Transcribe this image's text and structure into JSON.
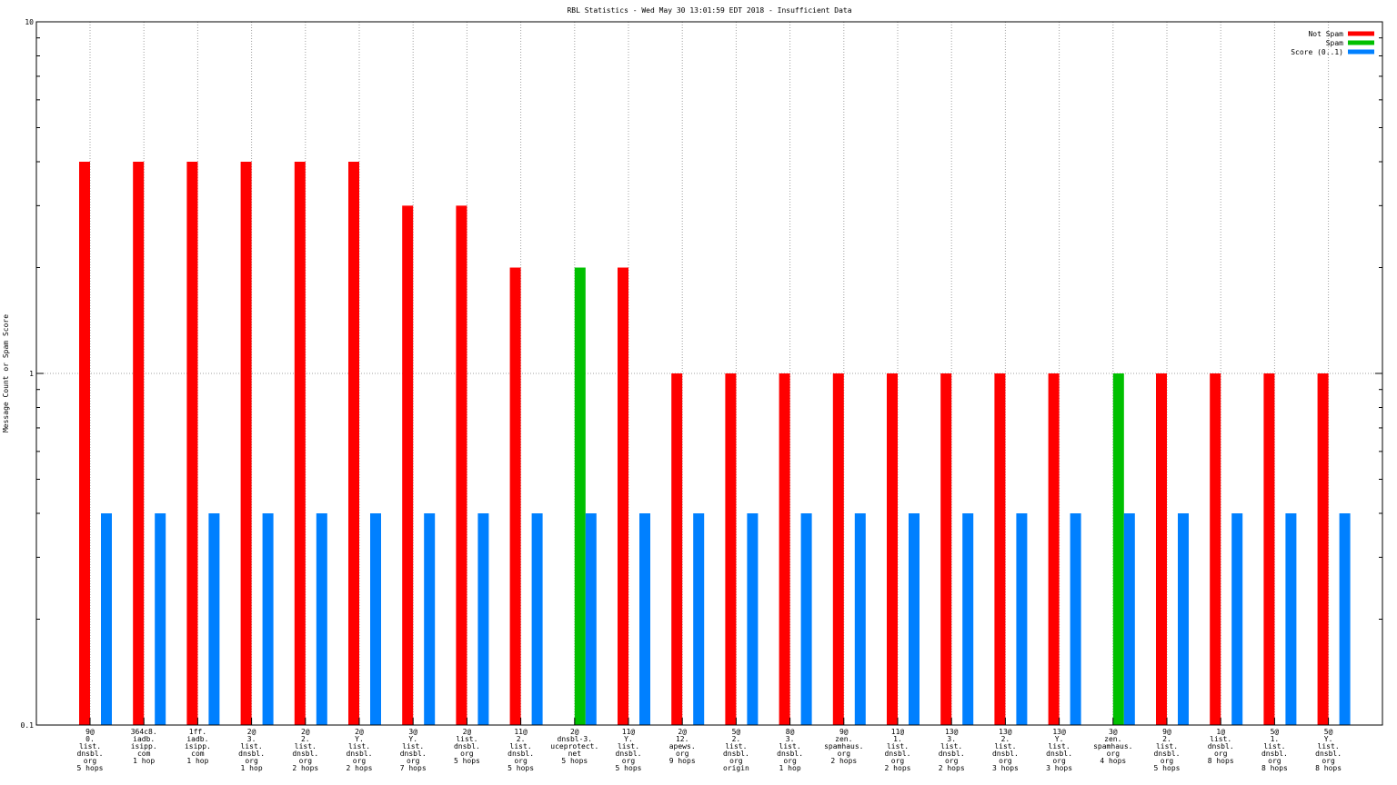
{
  "chart_data": {
    "type": "bar",
    "title": "RBL Statistics - Wed May 30 13:01:59 EDT 2018 - Insufficient Data",
    "y_label": "Message Count or Spam Score",
    "log_scale_y": true,
    "ylim": [
      0.1,
      10
    ],
    "yticks": [
      0.1,
      1,
      10
    ],
    "grid": true,
    "legend": "top-right",
    "categories": [
      [
        "9@",
        "0.",
        "list.",
        "dnsbl.",
        "org",
        "5 hops"
      ],
      [
        "364c8.",
        "iadb.",
        "isipp.",
        "com",
        "1 hop"
      ],
      [
        "1ff.",
        "iadb.",
        "isipp.",
        "com",
        "1 hop"
      ],
      [
        "2@",
        "3.",
        "list.",
        "dnsbl.",
        "org",
        "1 hop"
      ],
      [
        "2@",
        "2.",
        "list.",
        "dnsbl.",
        "org",
        "2 hops"
      ],
      [
        "2@",
        "Y.",
        "list.",
        "dnsbl.",
        "org",
        "2 hops"
      ],
      [
        "3@",
        "Y.",
        "list.",
        "dnsbl.",
        "org",
        "7 hops"
      ],
      [
        "2@",
        "list.",
        "dnsbl.",
        "org",
        "5 hops"
      ],
      [
        "11@",
        "2.",
        "list.",
        "dnsbl.",
        "org",
        "5 hops"
      ],
      [
        "2@",
        "dnsbl-3.",
        "uceprotect.",
        "net",
        "5 hops"
      ],
      [
        "11@",
        "Y.",
        "list.",
        "dnsbl.",
        "org",
        "5 hops"
      ],
      [
        "2@",
        "12.",
        "apews.",
        "org",
        "9 hops"
      ],
      [
        "5@",
        "2.",
        "list.",
        "dnsbl.",
        "org",
        "origin"
      ],
      [
        "8@",
        "3.",
        "list.",
        "dnsbl.",
        "org",
        "1 hop"
      ],
      [
        "9@",
        "zen.",
        "spamhaus.",
        "org",
        "2 hops"
      ],
      [
        "11@",
        "1.",
        "list.",
        "dnsbl.",
        "org",
        "2 hops"
      ],
      [
        "13@",
        "3.",
        "list.",
        "dnsbl.",
        "org",
        "2 hops"
      ],
      [
        "13@",
        "2.",
        "list.",
        "dnsbl.",
        "org",
        "3 hops"
      ],
      [
        "13@",
        "Y.",
        "list.",
        "dnsbl.",
        "org",
        "3 hops"
      ],
      [
        "3@",
        "zen.",
        "spamhaus.",
        "org",
        "4 hops"
      ],
      [
        "9@",
        "2.",
        "list.",
        "dnsbl.",
        "org",
        "5 hops"
      ],
      [
        "1@",
        "list.",
        "dnsbl.",
        "org",
        "8 hops"
      ],
      [
        "5@",
        "1.",
        "list.",
        "dnsbl.",
        "org",
        "8 hops"
      ],
      [
        "5@",
        "Y.",
        "list.",
        "dnsbl.",
        "org",
        "8 hops"
      ]
    ],
    "series": [
      {
        "name": "Not Spam",
        "color": "#ff0000",
        "values": [
          4,
          4,
          4,
          4,
          4,
          4,
          3,
          3,
          2,
          null,
          2,
          1,
          1,
          1,
          1,
          1,
          1,
          1,
          1,
          null,
          1,
          1,
          1,
          1
        ]
      },
      {
        "name": "Spam",
        "color": "#00c000",
        "values": [
          null,
          null,
          null,
          null,
          null,
          null,
          null,
          null,
          null,
          2,
          null,
          null,
          null,
          null,
          null,
          null,
          null,
          null,
          null,
          1,
          null,
          null,
          null,
          null
        ]
      },
      {
        "name": "Score (0..1)",
        "color": "#0080ff",
        "values": [
          0.4,
          0.4,
          0.4,
          0.4,
          0.4,
          0.4,
          0.4,
          0.4,
          0.4,
          0.4,
          0.4,
          0.4,
          0.4,
          0.4,
          0.4,
          0.4,
          0.4,
          0.4,
          0.4,
          0.4,
          0.4,
          0.4,
          0.4,
          0.4
        ]
      }
    ]
  }
}
